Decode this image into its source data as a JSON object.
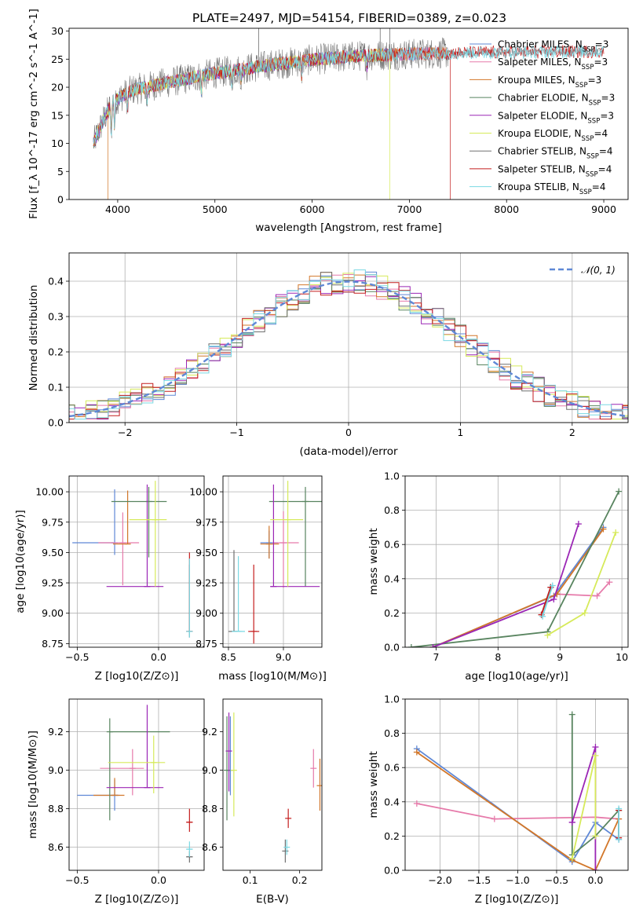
{
  "title": "PLATE=2497, MJD=54154, FIBERID=0389, z=0.023",
  "colors": {
    "Chabrier MILES": "#5f88d6",
    "Salpeter MILES": "#e67aaa",
    "Kroupa MILES": "#d2772a",
    "Chabrier ELODIE": "#58845f",
    "Salpeter ELODIE": "#9b26b5",
    "Kroupa ELODIE": "#d6ea5a",
    "Chabrier STELIB": "#707070",
    "Salpeter STELIB": "#c41e1e",
    "Kroupa STELIB": "#7ad8e3"
  },
  "legend_spectrum": [
    {
      "name": "Chabrier MILES",
      "nssp": "3"
    },
    {
      "name": "Salpeter MILES",
      "nssp": "3"
    },
    {
      "name": "Kroupa MILES",
      "nssp": "3"
    },
    {
      "name": "Chabrier ELODIE",
      "nssp": "3"
    },
    {
      "name": "Salpeter ELODIE",
      "nssp": "3"
    },
    {
      "name": "Kroupa ELODIE",
      "nssp": "4"
    },
    {
      "name": "Chabrier STELIB",
      "nssp": "4"
    },
    {
      "name": "Salpeter STELIB",
      "nssp": "4"
    },
    {
      "name": "Kroupa STELIB",
      "nssp": "4"
    }
  ],
  "legend_hist": "𝒩(0, 1)",
  "chart_data": [
    {
      "id": "spectrum",
      "type": "line",
      "xlabel": "wavelength [Angstrom, rest frame]",
      "ylabel": "Flux [f_λ 10^-17 erg cm^-2 s^-1 A^-1]",
      "xlim": [
        3500,
        9250
      ],
      "ylim": [
        0,
        30.5
      ],
      "xticks": [
        4000,
        5000,
        6000,
        7000,
        8000,
        9000
      ],
      "yticks": [
        0,
        5,
        10,
        15,
        20,
        25,
        30
      ],
      "continuum": [
        [
          3750,
          10
        ],
        [
          3850,
          14
        ],
        [
          3950,
          17.5
        ],
        [
          4150,
          19.5
        ],
        [
          4500,
          20.8
        ],
        [
          5000,
          22.5
        ],
        [
          5500,
          23.8
        ],
        [
          6000,
          24.9
        ],
        [
          6500,
          25.6
        ],
        [
          7000,
          25.9
        ],
        [
          7400,
          26.1
        ]
      ],
      "drops": [
        {
          "series": "Kroupa MILES",
          "at": 3900
        },
        {
          "series": "Kroupa ELODIE",
          "at": 6800
        },
        {
          "series": "Salpeter STELIB",
          "at": 7420
        }
      ],
      "range_end": {
        "MILES": 7400,
        "ELODIE": 6800,
        "STELIB": 9000
      }
    },
    {
      "id": "residual_hist",
      "type": "histogram",
      "xlabel": "(data-model)/error",
      "ylabel": "Normed distribution",
      "xlim": [
        -2.5,
        2.5
      ],
      "ylim": [
        0,
        0.48
      ],
      "xticks": [
        -2,
        -1,
        0,
        1,
        2
      ],
      "yticks": [
        0.0,
        0.1,
        0.2,
        0.3,
        0.4
      ],
      "bin_width": 0.1,
      "gaussian": {
        "mu": 0,
        "sigma": 1
      }
    },
    {
      "id": "age_vs_Z",
      "type": "scatter",
      "xlabel": "Z [log10(Z/Z⊙)]",
      "ylabel": "age [log10(age/yr)]",
      "xlim": [
        -0.55,
        0.28
      ],
      "ylim": [
        8.72,
        10.13
      ],
      "xticks": [
        -0.5,
        0.0
      ],
      "yticks": [
        8.75,
        9.0,
        9.25,
        9.5,
        9.75,
        10.0
      ],
      "points": [
        {
          "series": "Chabrier MILES",
          "x": -0.27,
          "y": 9.58,
          "xerr": [
            0.26,
            0.0
          ],
          "yerr": [
            0.1,
            0.44
          ]
        },
        {
          "series": "Salpeter MILES",
          "x": -0.22,
          "y": 9.58,
          "xerr": [
            0.15,
            0.1
          ],
          "yerr": [
            0.35,
            0.25
          ]
        },
        {
          "series": "Kroupa MILES",
          "x": -0.19,
          "y": 9.57,
          "xerr": [
            0.09,
            0.0
          ],
          "yerr": [
            0.0,
            0.44
          ]
        },
        {
          "series": "Chabrier ELODIE",
          "x": -0.06,
          "y": 9.92,
          "xerr": [
            0.23,
            0.11
          ],
          "yerr": [
            0.46,
            0.12
          ]
        },
        {
          "series": "Salpeter ELODIE",
          "x": -0.07,
          "y": 9.22,
          "xerr": [
            0.25,
            0.1
          ],
          "yerr": [
            0.0,
            0.84
          ]
        },
        {
          "series": "Kroupa ELODIE",
          "x": -0.02,
          "y": 9.77,
          "xerr": [
            0.16,
            0.07
          ],
          "yerr": [
            0.55,
            0.32
          ]
        },
        {
          "series": "Chabrier STELIB",
          "x": 0.19,
          "y": 8.85,
          "xerr": [
            0.0,
            0.0
          ],
          "yerr": [
            0.05,
            0.55
          ]
        },
        {
          "series": "Salpeter STELIB",
          "x": 0.19,
          "y": 8.85,
          "xerr": [
            0.0,
            0.0
          ],
          "yerr": [
            0.0,
            0.65
          ]
        },
        {
          "series": "Kroupa STELIB",
          "x": 0.19,
          "y": 8.85,
          "xerr": [
            0.0,
            0.0
          ],
          "yerr": [
            0.05,
            0.6
          ]
        }
      ]
    },
    {
      "id": "age_vs_mass",
      "type": "scatter",
      "xlabel": "mass [log10(M/M⊙)]",
      "ylabel": "",
      "xlim": [
        8.45,
        9.35
      ],
      "ylim": [
        8.72,
        10.13
      ],
      "xticks": [
        8.5,
        9.0
      ],
      "yticks": [
        8.75,
        9.0,
        9.25,
        9.5,
        9.75,
        10.0
      ],
      "points": [
        {
          "series": "Chabrier MILES",
          "x": 8.87,
          "y": 9.58,
          "xerr": [
            0.08,
            0.08
          ],
          "yerr": [
            0.13,
            0.1
          ]
        },
        {
          "series": "Salpeter MILES",
          "x": 9.0,
          "y": 9.58,
          "xerr": [
            0.1,
            0.14
          ],
          "yerr": [
            0.37,
            0.26
          ]
        },
        {
          "series": "Kroupa MILES",
          "x": 8.87,
          "y": 9.57,
          "xerr": [
            0.08,
            0.09
          ],
          "yerr": [
            0.12,
            0.15
          ]
        },
        {
          "series": "Chabrier ELODIE",
          "x": 9.2,
          "y": 9.92,
          "xerr": [
            0.33,
            0.15
          ],
          "yerr": [
            0.7,
            0.12
          ]
        },
        {
          "series": "Salpeter ELODIE",
          "x": 8.91,
          "y": 9.22,
          "xerr": [
            0.03,
            0.42
          ],
          "yerr": [
            0.0,
            0.84
          ]
        },
        {
          "series": "Kroupa ELODIE",
          "x": 9.04,
          "y": 9.77,
          "xerr": [
            0.16,
            0.14
          ],
          "yerr": [
            0.55,
            0.32
          ]
        },
        {
          "series": "Chabrier STELIB",
          "x": 8.55,
          "y": 8.85,
          "xerr": [
            0.05,
            0.05
          ],
          "yerr": [
            0.0,
            0.67
          ]
        },
        {
          "series": "Salpeter STELIB",
          "x": 8.73,
          "y": 8.85,
          "xerr": [
            0.05,
            0.05
          ],
          "yerr": [
            0.1,
            0.55
          ]
        },
        {
          "series": "Kroupa STELIB",
          "x": 8.59,
          "y": 8.85,
          "xerr": [
            0.06,
            0.06
          ],
          "yerr": [
            0.0,
            0.62
          ]
        }
      ]
    },
    {
      "id": "weight_vs_age",
      "type": "line",
      "xlabel": "age [log10(age/yr)]",
      "ylabel": "mass weight",
      "xlim": [
        6.5,
        10.1
      ],
      "ylim": [
        0,
        1
      ],
      "xticks": [
        7,
        8,
        9,
        10
      ],
      "yticks": [
        0.0,
        0.2,
        0.4,
        0.6,
        0.8,
        1.0
      ],
      "series": [
        {
          "name": "Chabrier MILES",
          "x": [
            6.95,
            8.9,
            9.7
          ],
          "y": [
            0.0,
            0.3,
            0.7
          ]
        },
        {
          "name": "Salpeter MILES",
          "x": [
            8.95,
            9.6,
            9.8
          ],
          "y": [
            0.31,
            0.3,
            0.38
          ]
        },
        {
          "name": "Kroupa MILES",
          "x": [
            6.95,
            8.95,
            9.7
          ],
          "y": [
            0.0,
            0.31,
            0.69
          ]
        },
        {
          "name": "Chabrier ELODIE",
          "x": [
            6.6,
            8.8,
            9.95
          ],
          "y": [
            0.0,
            0.09,
            0.91
          ]
        },
        {
          "name": "Salpeter ELODIE",
          "x": [
            6.95,
            8.9,
            9.3
          ],
          "y": [
            0.0,
            0.28,
            0.72
          ]
        },
        {
          "name": "Kroupa ELODIE",
          "x": [
            8.8,
            9.4,
            9.9
          ],
          "y": [
            0.07,
            0.2,
            0.67
          ]
        },
        {
          "name": "Chabrier STELIB",
          "x": [
            8.7,
            8.85
          ],
          "y": [
            0.19,
            0.35
          ]
        },
        {
          "name": "Salpeter STELIB",
          "x": [
            8.7,
            8.85
          ],
          "y": [
            0.19,
            0.35
          ]
        },
        {
          "name": "Kroupa STELIB",
          "x": [
            8.72,
            8.88
          ],
          "y": [
            0.18,
            0.36
          ]
        }
      ]
    },
    {
      "id": "mass_vs_Z",
      "type": "scatter",
      "xlabel": "Z [log10(Z/Z⊙)]",
      "ylabel": "mass [log10(M/M⊙)]",
      "xlim": [
        -0.55,
        0.28
      ],
      "ylim": [
        8.48,
        9.37
      ],
      "xticks": [
        -0.5,
        0.0
      ],
      "yticks": [
        8.6,
        8.8,
        9.0,
        9.2
      ],
      "points": [
        {
          "series": "Chabrier MILES",
          "x": -0.27,
          "y": 8.87,
          "xerr": [
            0.23,
            0.03
          ],
          "yerr": [
            0.08,
            0.08
          ]
        },
        {
          "series": "Salpeter MILES",
          "x": -0.16,
          "y": 9.01,
          "xerr": [
            0.2,
            0.07
          ],
          "yerr": [
            0.14,
            0.1
          ]
        },
        {
          "series": "Kroupa MILES",
          "x": -0.27,
          "y": 8.87,
          "xerr": [
            0.13,
            0.06
          ],
          "yerr": [
            0.0,
            0.09
          ]
        },
        {
          "series": "Chabrier ELODIE",
          "x": -0.3,
          "y": 9.2,
          "xerr": [
            0.0,
            0.37
          ],
          "yerr": [
            0.46,
            0.07
          ]
        },
        {
          "series": "Salpeter ELODIE",
          "x": -0.07,
          "y": 8.91,
          "xerr": [
            0.25,
            0.1
          ],
          "yerr": [
            0.0,
            0.43
          ]
        },
        {
          "series": "Kroupa ELODIE",
          "x": -0.03,
          "y": 9.04,
          "xerr": [
            0.28,
            0.07
          ],
          "yerr": [
            0.16,
            0.14
          ]
        },
        {
          "series": "Chabrier STELIB",
          "x": 0.19,
          "y": 8.55,
          "xerr": [
            0.02,
            0.02
          ],
          "yerr": [
            0.03,
            0.03
          ]
        },
        {
          "series": "Salpeter STELIB",
          "x": 0.19,
          "y": 8.73,
          "xerr": [
            0.02,
            0.02
          ],
          "yerr": [
            0.05,
            0.07
          ]
        },
        {
          "series": "Kroupa STELIB",
          "x": 0.19,
          "y": 8.59,
          "xerr": [
            0.02,
            0.02
          ],
          "yerr": [
            0.04,
            0.04
          ]
        }
      ]
    },
    {
      "id": "mass_vs_EBV",
      "type": "scatter",
      "xlabel": "E(B-V)",
      "ylabel": "",
      "xlim": [
        0.045,
        0.245
      ],
      "ylim": [
        8.48,
        9.37
      ],
      "xticks": [
        0.1,
        0.2
      ],
      "yticks": [
        8.6,
        8.8,
        9.0,
        9.2
      ],
      "points": [
        {
          "series": "Chabrier MILES",
          "x": 0.06,
          "y": 9.0,
          "xerr": [
            0,
            0
          ],
          "yerr": [
            0.13,
            0.28
          ]
        },
        {
          "series": "Salpeter MILES",
          "x": 0.228,
          "y": 9.01,
          "xerr": [
            0,
            0
          ],
          "yerr": [
            0.1,
            0.1
          ]
        },
        {
          "series": "Kroupa MILES",
          "x": 0.241,
          "y": 8.92,
          "xerr": [
            0,
            0
          ],
          "yerr": [
            0.13,
            0.14
          ]
        },
        {
          "series": "Chabrier ELODIE",
          "x": 0.053,
          "y": 9.0,
          "xerr": [
            0,
            0
          ],
          "yerr": [
            0.26,
            0.28
          ]
        },
        {
          "series": "Salpeter ELODIE",
          "x": 0.057,
          "y": 9.1,
          "xerr": [
            0,
            0
          ],
          "yerr": [
            0.21,
            0.2
          ]
        },
        {
          "series": "Kroupa ELODIE",
          "x": 0.067,
          "y": 9.0,
          "xerr": [
            0,
            0
          ],
          "yerr": [
            0.24,
            0.3
          ]
        },
        {
          "series": "Chabrier STELIB",
          "x": 0.171,
          "y": 8.58,
          "xerr": [
            0,
            0
          ],
          "yerr": [
            0.06,
            0.06
          ]
        },
        {
          "series": "Salpeter STELIB",
          "x": 0.177,
          "y": 8.75,
          "xerr": [
            0,
            0
          ],
          "yerr": [
            0.05,
            0.05
          ]
        },
        {
          "series": "Kroupa STELIB",
          "x": 0.174,
          "y": 8.6,
          "xerr": [
            0,
            0
          ],
          "yerr": [
            0.04,
            0.04
          ]
        }
      ]
    },
    {
      "id": "weight_vs_Z",
      "type": "line",
      "xlabel": "Z [log10(Z/Z⊙)]",
      "ylabel": "mass weight",
      "xlim": [
        -2.45,
        0.42
      ],
      "ylim": [
        0,
        1
      ],
      "xticks": [
        -2.0,
        -1.5,
        -1.0,
        -0.5,
        0.0
      ],
      "yticks": [
        0.0,
        0.2,
        0.4,
        0.6,
        0.8,
        1.0
      ],
      "series": [
        {
          "name": "Chabrier MILES",
          "x": [
            -2.3,
            -0.3,
            0.0,
            0.3
          ],
          "y": [
            0.71,
            0.05,
            0.28,
            0.18
          ]
        },
        {
          "name": "Salpeter MILES",
          "x": [
            -2.3,
            -1.3,
            0.0,
            0.3
          ],
          "y": [
            0.39,
            0.3,
            0.31,
            0.3
          ]
        },
        {
          "name": "Kroupa MILES",
          "x": [
            -2.3,
            -0.3,
            0.0,
            0.3
          ],
          "y": [
            0.69,
            0.06,
            0.0,
            0.3
          ]
        },
        {
          "name": "Chabrier ELODIE",
          "x": [
            -0.3,
            -0.3,
            0.0,
            0.3
          ],
          "y": [
            0.91,
            0.09,
            0.2,
            0.35
          ]
        },
        {
          "name": "Salpeter ELODIE",
          "x": [
            -0.3,
            -0.3,
            0.0,
            0.0
          ],
          "y": [
            0.28,
            0.28,
            0.72,
            0.0
          ]
        },
        {
          "name": "Kroupa ELODIE",
          "x": [
            -0.3,
            0.0,
            0.0
          ],
          "y": [
            0.07,
            0.67,
            0.2
          ]
        },
        {
          "name": "Chabrier STELIB",
          "x": [
            0.3,
            0.3
          ],
          "y": [
            0.19,
            0.35
          ]
        },
        {
          "name": "Salpeter STELIB",
          "x": [
            0.3,
            0.3
          ],
          "y": [
            0.19,
            0.35
          ]
        },
        {
          "name": "Kroupa STELIB",
          "x": [
            0.3,
            0.3
          ],
          "y": [
            0.18,
            0.36
          ]
        }
      ]
    }
  ]
}
